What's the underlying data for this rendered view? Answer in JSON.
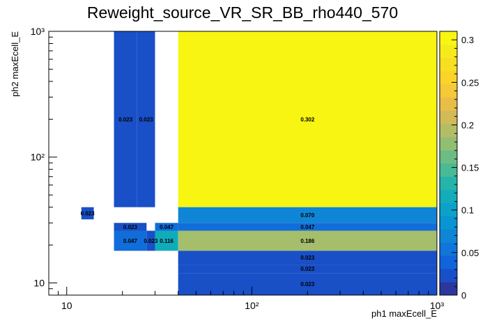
{
  "chart_data": {
    "type": "heatmap",
    "title": "Reweight_source_VR_SR_BB_rho440_570",
    "xlabel": "ph1 maxEcell_E",
    "ylabel": "ph2 maxEcell_E",
    "x_scale": "log",
    "y_scale": "log",
    "xlim": [
      8,
      1000
    ],
    "ylim": [
      8,
      1000
    ],
    "x_major_ticks": [
      10,
      100,
      1000
    ],
    "y_major_ticks": [
      10,
      100,
      1000
    ],
    "x_tick_labels": [
      "10",
      "10²",
      "10³"
    ],
    "y_tick_labels": [
      "10",
      "10²",
      "10³"
    ],
    "colorbar": {
      "min": 0,
      "max": 0.31,
      "ticks": [
        0,
        0.05,
        0.1,
        0.15,
        0.2,
        0.25,
        0.3
      ],
      "tick_labels": [
        "0",
        "0.05",
        "0.1",
        "0.15",
        "0.2",
        "0.25",
        "0.3"
      ]
    },
    "cells": [
      {
        "x0": 18,
        "x1": 24,
        "y0": 40,
        "y1": 1000,
        "value": 0.023,
        "label": "0.023"
      },
      {
        "x0": 24,
        "x1": 30,
        "y0": 40,
        "y1": 1000,
        "value": 0.023,
        "label": "0.023"
      },
      {
        "x0": 40,
        "x1": 1000,
        "y0": 40,
        "y1": 1000,
        "value": 0.302,
        "label": "0.302"
      },
      {
        "x0": 12,
        "x1": 14,
        "y0": 32,
        "y1": 40,
        "value": 0.023,
        "label": "0.023"
      },
      {
        "x0": 40,
        "x1": 1000,
        "y0": 30,
        "y1": 40,
        "value": 0.07,
        "label": "0.070"
      },
      {
        "x0": 18,
        "x1": 27,
        "y0": 26,
        "y1": 30,
        "value": 0.023,
        "label": "0.023"
      },
      {
        "x0": 30,
        "x1": 40,
        "y0": 26,
        "y1": 30,
        "value": 0.047,
        "label": "0.047"
      },
      {
        "x0": 40,
        "x1": 1000,
        "y0": 26,
        "y1": 30,
        "value": 0.047,
        "label": "0.047"
      },
      {
        "x0": 18,
        "x1": 27,
        "y0": 18,
        "y1": 26,
        "value": 0.047,
        "label": "0.047"
      },
      {
        "x0": 27,
        "x1": 30,
        "y0": 18,
        "y1": 26,
        "value": 0.023,
        "label": "0.023"
      },
      {
        "x0": 30,
        "x1": 40,
        "y0": 18,
        "y1": 26,
        "value": 0.116,
        "label": "0.116"
      },
      {
        "x0": 40,
        "x1": 1000,
        "y0": 18,
        "y1": 26,
        "value": 0.186,
        "label": "0.186"
      },
      {
        "x0": 40,
        "x1": 1000,
        "y0": 14,
        "y1": 18,
        "value": 0.023,
        "label": "0.023"
      },
      {
        "x0": 40,
        "x1": 1000,
        "y0": 12,
        "y1": 14,
        "value": 0.023,
        "label": "0.023"
      },
      {
        "x0": 40,
        "x1": 1000,
        "y0": 8,
        "y1": 12,
        "value": 0.023,
        "label": "0.023"
      }
    ]
  }
}
